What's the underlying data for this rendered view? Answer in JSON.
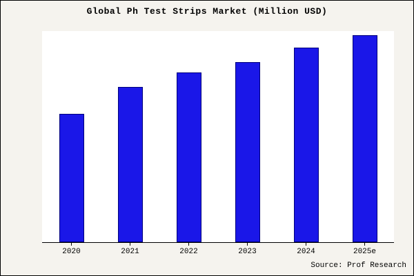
{
  "chart_data": {
    "type": "bar",
    "title": "Global Ph Test Strips Market (Million USD)",
    "categories": [
      "2020",
      "2021",
      "2022",
      "2023",
      "2024",
      "2025e"
    ],
    "values": [
      62,
      75,
      82,
      87,
      94,
      100
    ],
    "ylabel": "",
    "xlabel": "",
    "ylim": [
      0,
      102
    ],
    "grid": false,
    "legend": "none",
    "bar_color": "#1a17e8",
    "bar_edge_color": "#00007a",
    "plot_background": "#ffffff",
    "canvas_background": "#f5f3ee"
  },
  "footer": {
    "source": "Source: Prof Research"
  }
}
